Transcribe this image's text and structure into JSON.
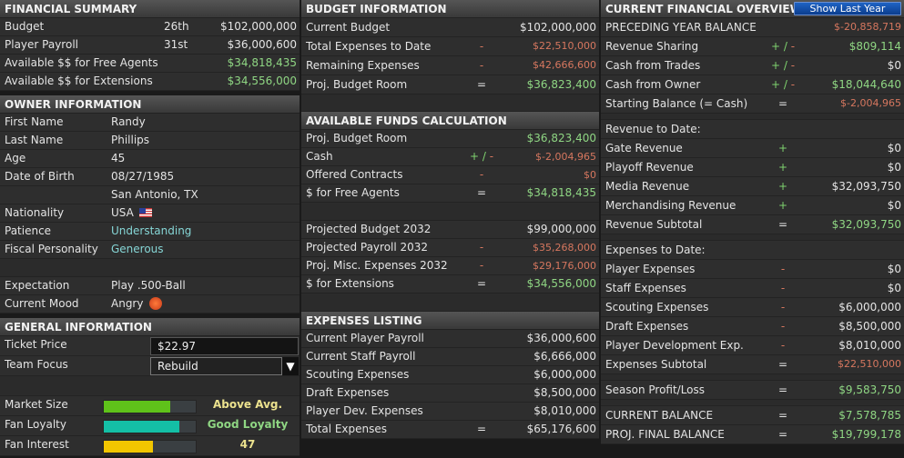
{
  "financial_summary": {
    "title": "FINANCIAL SUMMARY",
    "rows": [
      {
        "label": "Budget",
        "rank": "26th",
        "value": "$102,000,000",
        "color": ""
      },
      {
        "label": "Player Payroll",
        "rank": "31st",
        "value": "$36,000,600",
        "color": ""
      },
      {
        "label": "Available $$ for Free Agents",
        "rank": "",
        "value": "$34,818,435",
        "color": "green"
      },
      {
        "label": "Available $$ for Extensions",
        "rank": "",
        "value": "$34,556,000",
        "color": "green"
      }
    ]
  },
  "owner_information": {
    "title": "OWNER INFORMATION",
    "first_name_label": "First Name",
    "first_name": "Randy",
    "last_name_label": "Last Name",
    "last_name": "Phillips",
    "age_label": "Age",
    "age": "45",
    "dob_label": "Date of Birth",
    "dob": "08/27/1985",
    "birthplace": "San Antonio, TX",
    "nationality_label": "Nationality",
    "nationality": "USA",
    "nationality_icon": "us-flag-icon",
    "patience_label": "Patience",
    "patience": "Understanding",
    "fiscal_label": "Fiscal Personality",
    "fiscal": "Generous",
    "expectation_label": "Expectation",
    "expectation": "Play .500-Ball",
    "mood_label": "Current Mood",
    "mood": "Angry",
    "mood_icon": "angry-face-icon"
  },
  "general_information": {
    "title": "GENERAL INFORMATION",
    "ticket_price_label": "Ticket Price",
    "ticket_price": "$22.97",
    "team_focus_label": "Team Focus",
    "team_focus": "Rebuild",
    "market_size_label": "Market Size",
    "market_size": "Above Avg.",
    "market_size_level": 0.72,
    "market_size_color": "#5fc21a",
    "fan_loyalty_label": "Fan Loyalty",
    "fan_loyalty": "Good Loyalty",
    "fan_loyalty_level": 0.82,
    "fan_loyalty_color": "#14bfa6",
    "fan_interest_label": "Fan Interest",
    "fan_interest": "47",
    "fan_interest_level": 0.53,
    "fan_interest_color": "#f2c600"
  },
  "budget_information": {
    "title": "BUDGET INFORMATION",
    "rows": [
      {
        "label": "Current Budget",
        "op": "",
        "value": "$102,000,000",
        "color": ""
      },
      {
        "label": "Total Expenses to Date",
        "op": "-",
        "value": "$22,510,000",
        "color": "red"
      },
      {
        "label": "Remaining Expenses",
        "op": "-",
        "value": "$42,666,600",
        "color": "red"
      },
      {
        "label": "Proj. Budget Room",
        "op": "=",
        "value": "$36,823,400",
        "color": "green"
      }
    ]
  },
  "available_funds": {
    "title": "AVAILABLE FUNDS CALCULATION",
    "rows": [
      {
        "label": "Proj. Budget Room",
        "op": "",
        "value": "$36,823,400",
        "color": "green"
      },
      {
        "label": "Cash",
        "op": "+/-",
        "value": "$-2,004,965",
        "color": "red"
      },
      {
        "label": "Offered Contracts",
        "op": "-",
        "value": "$0",
        "color": "red"
      },
      {
        "label": "$ for Free Agents",
        "op": "=",
        "value": "$34,818,435",
        "color": "green"
      },
      {
        "blank": true
      },
      {
        "label": "Projected Budget 2032",
        "op": "",
        "value": "$99,000,000",
        "color": ""
      },
      {
        "label": "Projected Payroll 2032",
        "op": "-",
        "value": "$35,268,000",
        "color": "red"
      },
      {
        "label": "Proj. Misc. Expenses 2032",
        "op": "-",
        "value": "$29,176,000",
        "color": "red"
      },
      {
        "label": "$ for Extensions",
        "op": "=",
        "value": "$34,556,000",
        "color": "green"
      },
      {
        "blank": true
      }
    ]
  },
  "expenses_listing": {
    "title": "EXPENSES LISTING",
    "rows": [
      {
        "label": "Current Player Payroll",
        "op": "",
        "value": "$36,000,600",
        "color": ""
      },
      {
        "label": "Current Staff Payroll",
        "op": "",
        "value": "$6,666,000",
        "color": ""
      },
      {
        "label": "Scouting Expenses",
        "op": "",
        "value": "$6,000,000",
        "color": ""
      },
      {
        "label": "Draft Expenses",
        "op": "",
        "value": "$8,500,000",
        "color": ""
      },
      {
        "label": "Player Dev. Expenses",
        "op": "",
        "value": "$8,010,000",
        "color": ""
      },
      {
        "label": "Total Expenses",
        "op": "=",
        "value": "$65,176,600",
        "color": ""
      }
    ]
  },
  "current_financial_overview": {
    "title": "CURRENT FINANCIAL OVERVIEW",
    "show_last_year_label": "Show Last Year",
    "rows": [
      {
        "label": "PRECEDING YEAR BALANCE",
        "op": "",
        "value": "$-20,858,719",
        "color": "red"
      },
      {
        "label": "Revenue Sharing",
        "op": "+/-",
        "value": "$809,114",
        "color": "green"
      },
      {
        "label": "Cash from Trades",
        "op": "+/-",
        "value": "$0",
        "color": ""
      },
      {
        "label": "Cash from Owner",
        "op": "+/-",
        "value": "$18,044,640",
        "color": "green"
      },
      {
        "label": "Starting Balance (= Cash)",
        "op": "=",
        "value": "$-2,004,965",
        "color": "red"
      },
      {
        "blank": true,
        "half": true
      },
      {
        "label": "Revenue to Date:",
        "op": "",
        "value": "",
        "color": ""
      },
      {
        "label": "Gate Revenue",
        "op": "+",
        "value": "$0",
        "color": ""
      },
      {
        "label": "Playoff Revenue",
        "op": "+",
        "value": "$0",
        "color": ""
      },
      {
        "label": "Media Revenue",
        "op": "+",
        "value": "$32,093,750",
        "color": ""
      },
      {
        "label": "Merchandising Revenue",
        "op": "+",
        "value": "$0",
        "color": ""
      },
      {
        "label": "Revenue Subtotal",
        "op": "=",
        "value": "$32,093,750",
        "color": "green"
      },
      {
        "blank": true,
        "half": true
      },
      {
        "label": "Expenses to Date:",
        "op": "",
        "value": "",
        "color": ""
      },
      {
        "label": "Player Expenses",
        "op": "-",
        "value": "$0",
        "color": ""
      },
      {
        "label": "Staff Expenses",
        "op": "-",
        "value": "$0",
        "color": ""
      },
      {
        "label": "Scouting Expenses",
        "op": "-",
        "value": "$6,000,000",
        "color": ""
      },
      {
        "label": "Draft Expenses",
        "op": "-",
        "value": "$8,500,000",
        "color": ""
      },
      {
        "label": "Player Development Exp.",
        "op": "-",
        "value": "$8,010,000",
        "color": ""
      },
      {
        "label": "Expenses Subtotal",
        "op": "=",
        "value": "$22,510,000",
        "color": "red"
      },
      {
        "blank": true,
        "half": true
      },
      {
        "label": "Season Profit/Loss",
        "op": "=",
        "value": "$9,583,750",
        "color": "green"
      },
      {
        "blank": true,
        "half": true
      },
      {
        "label": "CURRENT BALANCE",
        "op": "=",
        "value": "$7,578,785",
        "color": "green"
      },
      {
        "label": "PROJ. FINAL BALANCE",
        "op": "=",
        "value": "$19,799,178",
        "color": "green"
      }
    ]
  }
}
